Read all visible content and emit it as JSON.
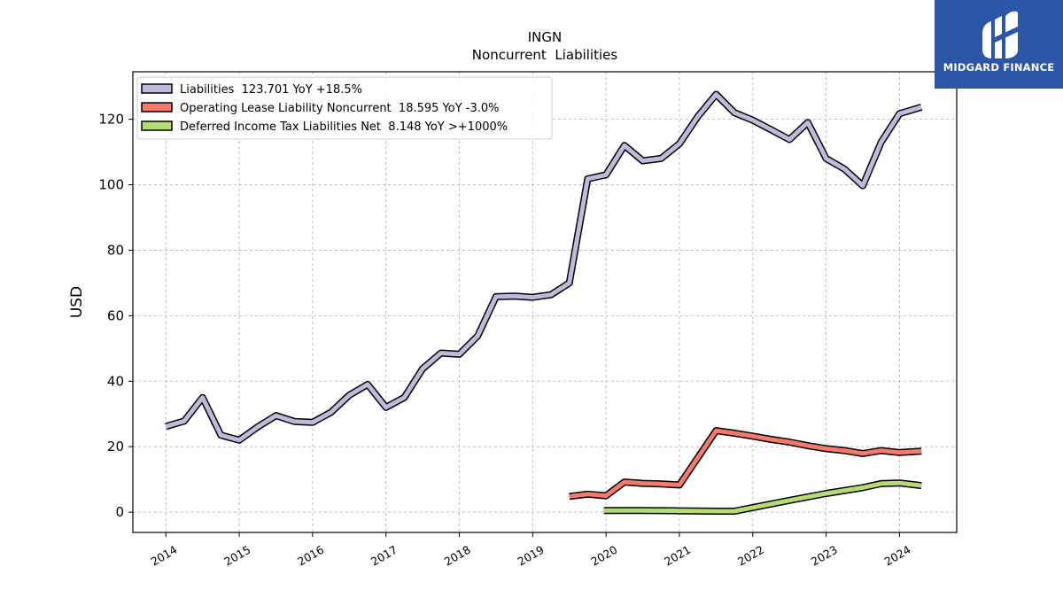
{
  "chart_data": {
    "type": "line",
    "title": "INGN",
    "subtitle": "Noncurrent  Liabilities",
    "ylabel": "USD",
    "xlabel": "",
    "ylim": [
      -6.2,
      134.5
    ],
    "xlim": [
      2013.55,
      2024.78
    ],
    "yticks": [
      0,
      20,
      40,
      60,
      80,
      100,
      120
    ],
    "xticks": [
      "2014",
      "2015",
      "2016",
      "2017",
      "2018",
      "2019",
      "2020",
      "2021",
      "2022",
      "2023",
      "2024"
    ],
    "grid": true,
    "legend_position": "top-left",
    "series": [
      {
        "name": "Liabilities  123.701 YoY +18.5%",
        "color": "#bcbbdc",
        "x": [
          2014.0,
          2014.25,
          2014.5,
          2014.75,
          2015.0,
          2015.25,
          2015.5,
          2015.75,
          2016.0,
          2016.25,
          2016.5,
          2016.75,
          2017.0,
          2017.25,
          2017.5,
          2017.75,
          2018.0,
          2018.25,
          2018.5,
          2018.75,
          2019.0,
          2019.25,
          2019.5,
          2019.75,
          2020.0,
          2020.25,
          2020.5,
          2020.75,
          2021.0,
          2021.25,
          2021.5,
          2021.75,
          2022.0,
          2022.25,
          2022.5,
          2022.75,
          2023.0,
          2023.25,
          2023.5,
          2023.75,
          2024.0,
          2024.3
        ],
        "values": [
          26.2,
          27.8,
          35.0,
          23.5,
          22.0,
          26.0,
          29.5,
          27.7,
          27.4,
          30.5,
          35.7,
          39.0,
          32.0,
          35.0,
          43.8,
          48.6,
          48.2,
          53.8,
          65.8,
          66.0,
          65.6,
          66.4,
          70.0,
          101.8,
          103.0,
          112.0,
          107.3,
          108.0,
          112.5,
          120.8,
          127.6,
          122.0,
          119.7,
          116.8,
          113.8,
          119.0,
          108.0,
          104.8,
          99.7,
          113.0,
          121.7,
          123.7
        ]
      },
      {
        "name": "Operating Lease Liability Noncurrent  18.595 YoY -3.0%",
        "color": "#f47a6c",
        "x": [
          2019.5,
          2019.75,
          2020.0,
          2020.25,
          2020.5,
          2020.75,
          2021.0,
          2021.5,
          2021.75,
          2022.0,
          2022.25,
          2022.5,
          2022.75,
          2023.0,
          2023.25,
          2023.5,
          2023.75,
          2024.0,
          2024.3
        ],
        "values": [
          4.8,
          5.5,
          5.0,
          9.2,
          8.8,
          8.6,
          8.3,
          24.9,
          24.1,
          23.2,
          22.2,
          21.4,
          20.3,
          19.4,
          18.8,
          17.9,
          18.8,
          18.2,
          18.6
        ]
      },
      {
        "name": "Deferred Income Tax Liabilities Net  8.148 YoY >+1000%",
        "color": "#b5dc70",
        "x": [
          2019.97,
          2020.5,
          2021.0,
          2021.5,
          2021.75,
          2022.0,
          2022.5,
          2023.0,
          2023.5,
          2023.75,
          2024.0,
          2024.3
        ],
        "values": [
          0.5,
          0.5,
          0.4,
          0.3,
          0.3,
          1.4,
          3.6,
          5.7,
          7.5,
          8.7,
          8.9,
          8.1
        ]
      }
    ]
  },
  "logo": {
    "text": "MIDGARD FINANCE",
    "background": "#2b55a6"
  }
}
